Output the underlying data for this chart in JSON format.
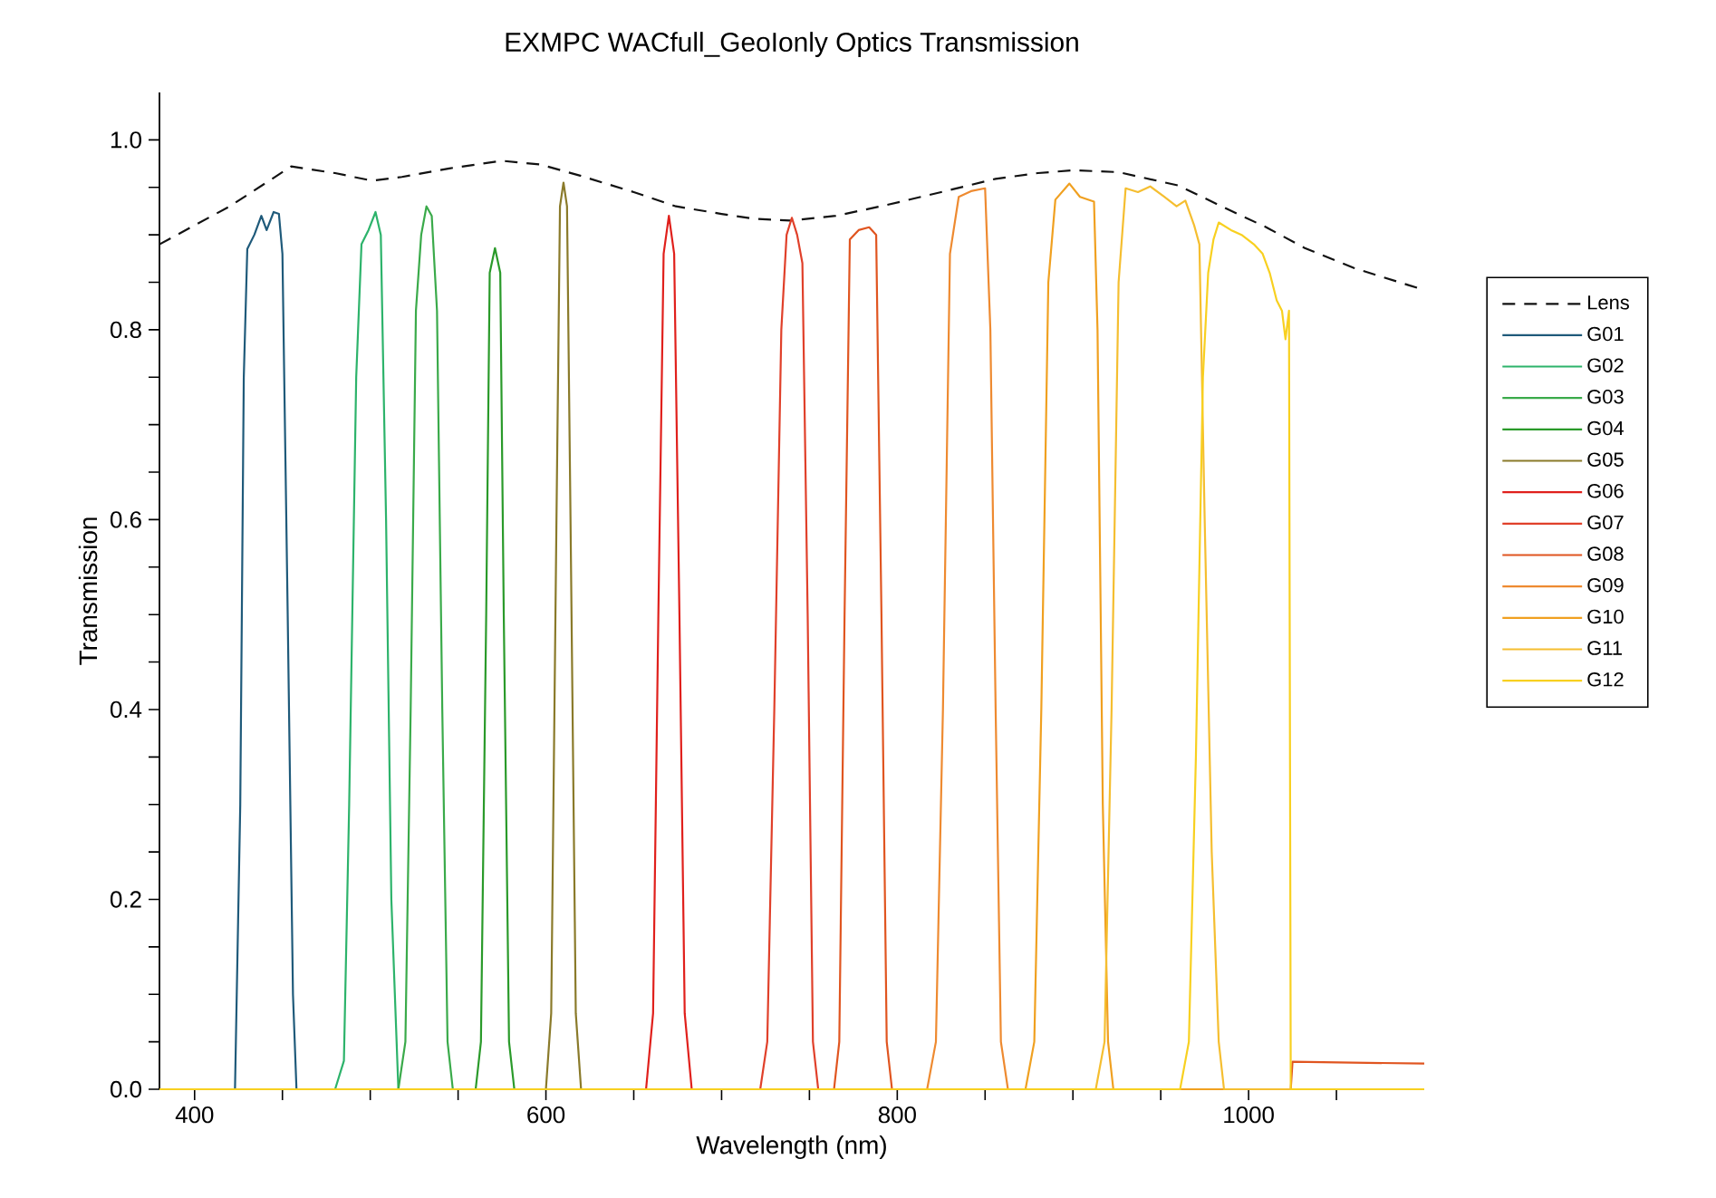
{
  "chart_data": {
    "type": "line",
    "title": "EXMPC WACfull_GeoIonly Optics Transmission",
    "xlabel": "Wavelength (nm)",
    "ylabel": "Transmission",
    "xlim": [
      380,
      1100
    ],
    "ylim": [
      0,
      1.05
    ],
    "xticks": [
      400,
      {
        "value": 450,
        "label": null
      },
      {
        "value": 500,
        "label": null
      },
      {
        "value": 550,
        "label": null
      },
      600,
      {
        "value": 650,
        "label": null
      },
      {
        "value": 700,
        "label": null
      },
      {
        "value": 750,
        "label": null
      },
      800,
      {
        "value": 850,
        "label": null
      },
      {
        "value": 900,
        "label": null
      },
      {
        "value": 950,
        "label": null
      },
      1000,
      {
        "value": 1050,
        "label": null
      }
    ],
    "yticks": [
      {
        "value": 0,
        "label": "0.0"
      },
      {
        "value": 0.05,
        "label": null
      },
      {
        "value": 0.1,
        "label": null
      },
      {
        "value": 0.15,
        "label": null
      },
      {
        "value": 0.2,
        "label": "0.2"
      },
      {
        "value": 0.25,
        "label": null
      },
      {
        "value": 0.3,
        "label": null
      },
      {
        "value": 0.35,
        "label": null
      },
      {
        "value": 0.4,
        "label": "0.4"
      },
      {
        "value": 0.45,
        "label": null
      },
      {
        "value": 0.5,
        "label": null
      },
      {
        "value": 0.55,
        "label": null
      },
      {
        "value": 0.6,
        "label": "0.6"
      },
      {
        "value": 0.65,
        "label": null
      },
      {
        "value": 0.7,
        "label": null
      },
      {
        "value": 0.75,
        "label": null
      },
      {
        "value": 0.8,
        "label": "0.8"
      },
      {
        "value": 0.85,
        "label": null
      },
      {
        "value": 0.9,
        "label": null
      },
      {
        "value": 0.95,
        "label": null
      },
      {
        "value": 1.0,
        "label": "1.0"
      }
    ],
    "legend": "right",
    "series": [
      {
        "name": "Lens",
        "color": "#111111",
        "line_style": "dashed",
        "x": [
          380,
          420,
          455,
          480,
          501,
          518,
          545,
          575,
          597,
          620,
          650,
          674,
          700,
          718,
          739,
          765,
          793,
          825,
          856,
          880,
          900,
          926,
          960,
          988,
          1010,
          1032,
          1060,
          1091,
          1100
        ],
        "values": [
          0.89,
          0.93,
          0.972,
          0.965,
          0.957,
          0.961,
          0.97,
          0.978,
          0.974,
          0.962,
          0.945,
          0.93,
          0.922,
          0.917,
          0.915,
          0.92,
          0.931,
          0.945,
          0.959,
          0.965,
          0.968,
          0.966,
          0.952,
          0.927,
          0.908,
          0.886,
          0.865,
          0.847,
          0.842
        ]
      },
      {
        "name": "G01",
        "color": "#1f5a7a",
        "x": [
          380,
          423,
          426,
          428,
          430,
          434,
          438,
          441,
          445,
          448,
          450,
          453,
          456,
          458,
          1100
        ],
        "values": [
          0,
          0,
          0.3,
          0.75,
          0.885,
          0.9,
          0.92,
          0.905,
          0.924,
          0.922,
          0.88,
          0.5,
          0.1,
          0,
          0
        ]
      },
      {
        "name": "G02",
        "color": "#2db36b",
        "x": [
          380,
          480,
          485,
          488,
          492,
          495,
          499,
          503,
          506,
          509,
          512,
          516,
          1100
        ],
        "values": [
          0,
          0,
          0.03,
          0.3,
          0.75,
          0.89,
          0.905,
          0.924,
          0.9,
          0.6,
          0.2,
          0,
          0
        ]
      },
      {
        "name": "G03",
        "color": "#3aaa4a",
        "x": [
          380,
          516,
          520,
          523,
          526,
          529,
          532,
          535,
          538,
          541,
          544,
          547,
          1100
        ],
        "values": [
          0,
          0,
          0.05,
          0.4,
          0.82,
          0.9,
          0.93,
          0.92,
          0.82,
          0.4,
          0.05,
          0,
          0
        ]
      },
      {
        "name": "G04",
        "color": "#2a9a2a",
        "x": [
          380,
          560,
          563,
          566,
          568,
          571,
          574,
          576,
          579,
          582,
          1100
        ],
        "values": [
          0,
          0,
          0.05,
          0.5,
          0.86,
          0.886,
          0.86,
          0.5,
          0.05,
          0,
          0
        ]
      },
      {
        "name": "G05",
        "color": "#8a7a2a",
        "x": [
          380,
          600,
          603,
          606,
          608,
          610,
          612,
          614,
          617,
          620,
          1100
        ],
        "values": [
          0,
          0,
          0.08,
          0.6,
          0.93,
          0.955,
          0.93,
          0.6,
          0.08,
          0,
          0
        ]
      },
      {
        "name": "G06",
        "color": "#e0201c",
        "x": [
          380,
          657,
          661,
          664,
          667,
          670,
          673,
          676,
          679,
          683,
          1100
        ],
        "values": [
          0,
          0,
          0.08,
          0.5,
          0.88,
          0.92,
          0.88,
          0.5,
          0.08,
          0,
          0
        ]
      },
      {
        "name": "G07",
        "color": "#e0402a",
        "x": [
          380,
          722,
          726,
          730,
          734,
          737,
          740,
          743,
          746,
          749,
          752,
          755,
          1100
        ],
        "values": [
          0,
          0,
          0.05,
          0.4,
          0.8,
          0.9,
          0.918,
          0.9,
          0.87,
          0.5,
          0.05,
          0,
          0
        ]
      },
      {
        "name": "G08",
        "color": "#e05520",
        "x": [
          380,
          764,
          767,
          770,
          773,
          778,
          784,
          788,
          791,
          794,
          797,
          1024,
          1025,
          1100
        ],
        "values": [
          0,
          0,
          0.05,
          0.5,
          0.895,
          0.905,
          0.908,
          0.9,
          0.5,
          0.05,
          0,
          0,
          0.029,
          0.027
        ]
      },
      {
        "name": "G09",
        "color": "#ee8a30",
        "x": [
          380,
          817,
          822,
          826,
          830,
          835,
          842,
          850,
          853,
          856,
          859,
          863,
          1100
        ],
        "values": [
          0,
          0,
          0.05,
          0.4,
          0.88,
          0.94,
          0.946,
          0.949,
          0.8,
          0.4,
          0.05,
          0,
          0
        ]
      },
      {
        "name": "G10",
        "color": "#f0a020",
        "x": [
          380,
          873,
          878,
          882,
          886,
          890,
          898,
          904,
          912,
          914,
          917,
          920,
          923,
          1100
        ],
        "values": [
          0,
          0,
          0.05,
          0.4,
          0.85,
          0.937,
          0.954,
          0.94,
          0.935,
          0.8,
          0.3,
          0.05,
          0,
          0
        ]
      },
      {
        "name": "G11",
        "color": "#f5be30",
        "x": [
          380,
          913,
          918,
          922,
          926,
          930,
          937,
          944,
          952,
          959,
          964,
          969,
          972,
          975,
          979,
          983,
          986,
          1100
        ],
        "values": [
          0,
          0,
          0.05,
          0.4,
          0.85,
          0.949,
          0.945,
          0.951,
          0.94,
          0.93,
          0.936,
          0.91,
          0.89,
          0.6,
          0.25,
          0.05,
          0,
          0
        ]
      },
      {
        "name": "G12",
        "color": "#f8d020",
        "x": [
          380,
          961,
          966,
          970,
          974,
          977,
          980,
          983,
          990,
          996,
          1003,
          1008,
          1012,
          1016,
          1019,
          1021,
          1023,
          1024,
          1100
        ],
        "values": [
          0,
          0,
          0.05,
          0.35,
          0.75,
          0.86,
          0.895,
          0.913,
          0.905,
          0.9,
          0.89,
          0.88,
          0.86,
          0.831,
          0.82,
          0.79,
          0.82,
          0,
          0
        ]
      }
    ]
  }
}
